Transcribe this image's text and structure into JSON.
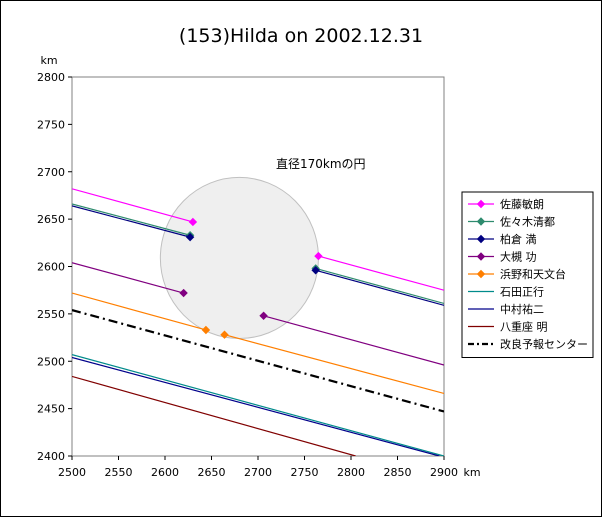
{
  "chart_data": {
    "type": "line",
    "title": "(153)Hilda on 2002.12.31",
    "xlabel": "km",
    "ylabel": "km",
    "xlim": [
      2500,
      2900
    ],
    "ylim": [
      2400,
      2800
    ],
    "x_ticks": [
      2500,
      2550,
      2600,
      2650,
      2700,
      2750,
      2800,
      2850,
      2900
    ],
    "y_ticks": [
      2400,
      2450,
      2500,
      2550,
      2600,
      2650,
      2700,
      2750,
      2800
    ],
    "grid": false,
    "legend_position": "right",
    "annotation": "直径170kmの円",
    "circle": {
      "cx": 2680,
      "cy": 2609,
      "r": 85,
      "fill": "#efefef",
      "stroke": "#c0c0c0"
    },
    "series": [
      {
        "name": "佐藤敏朗",
        "color": "#ff00ff",
        "marker": "diamond",
        "segments": [
          {
            "points": [
              [
                2500,
                2682
              ],
              [
                2630,
                2647
              ]
            ],
            "marker_ends": [
              false,
              true
            ]
          },
          {
            "points": [
              [
                2765,
                2611
              ],
              [
                2900,
                2575
              ]
            ],
            "marker_ends": [
              true,
              false
            ]
          }
        ]
      },
      {
        "name": "佐々木清都",
        "color": "#2e8b6e",
        "marker": "diamond",
        "segments": [
          {
            "points": [
              [
                2500,
                2666
              ],
              [
                2627,
                2633
              ]
            ],
            "marker_ends": [
              false,
              true
            ]
          },
          {
            "points": [
              [
                2762,
                2598
              ],
              [
                2900,
                2561
              ]
            ],
            "marker_ends": [
              true,
              false
            ]
          }
        ]
      },
      {
        "name": "柏倉 満",
        "color": "#000080",
        "marker": "diamond",
        "segments": [
          {
            "points": [
              [
                2500,
                2664
              ],
              [
                2627,
                2631
              ]
            ],
            "marker_ends": [
              false,
              true
            ]
          },
          {
            "points": [
              [
                2762,
                2596
              ],
              [
                2900,
                2559
              ]
            ],
            "marker_ends": [
              true,
              false
            ]
          }
        ]
      },
      {
        "name": "大槻 功",
        "color": "#800080",
        "marker": "diamond",
        "segments": [
          {
            "points": [
              [
                2500,
                2604
              ],
              [
                2620,
                2572
              ]
            ],
            "marker_ends": [
              false,
              true
            ]
          },
          {
            "points": [
              [
                2706,
                2548
              ],
              [
                2900,
                2496
              ]
            ],
            "marker_ends": [
              true,
              false
            ]
          }
        ]
      },
      {
        "name": "浜野和天文台",
        "color": "#ff7f00",
        "marker": "diamond",
        "segments": [
          {
            "points": [
              [
                2500,
                2572
              ],
              [
                2644,
                2533
              ]
            ],
            "marker_ends": [
              false,
              true
            ]
          },
          {
            "points": [
              [
                2664,
                2528
              ],
              [
                2900,
                2466
              ]
            ],
            "marker_ends": [
              true,
              false
            ]
          }
        ]
      },
      {
        "name": "石田正行",
        "color": "#008b8b",
        "marker": "none",
        "segments": [
          {
            "points": [
              [
                2500,
                2507
              ],
              [
                2900,
                2400
              ]
            ],
            "marker_ends": [
              false,
              false
            ]
          }
        ]
      },
      {
        "name": "中村祐二",
        "color": "#00008b",
        "marker": "none",
        "segments": [
          {
            "points": [
              [
                2500,
                2504
              ],
              [
                2895,
                2400
              ]
            ],
            "marker_ends": [
              false,
              false
            ]
          }
        ]
      },
      {
        "name": "八重座 明",
        "color": "#800000",
        "marker": "none",
        "segments": [
          {
            "points": [
              [
                2500,
                2484
              ],
              [
                2805,
                2400
              ]
            ],
            "marker_ends": [
              false,
              false
            ]
          }
        ]
      },
      {
        "name": "改良予報センター",
        "color": "#000000",
        "marker": "none",
        "dash": "dashdot",
        "segments": [
          {
            "points": [
              [
                2500,
                2554
              ],
              [
                2900,
                2447
              ]
            ],
            "marker_ends": [
              false,
              false
            ]
          }
        ]
      }
    ]
  }
}
